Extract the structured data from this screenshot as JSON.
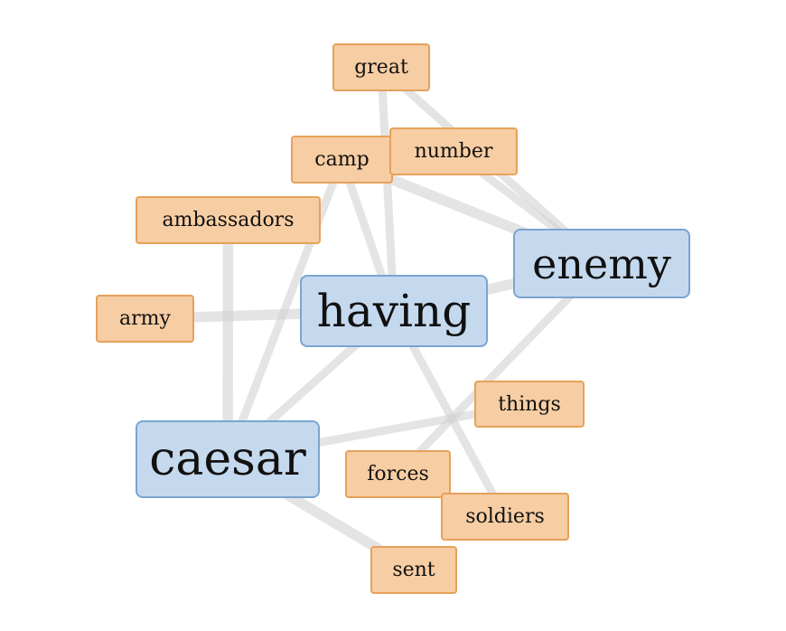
{
  "graph": {
    "colors": {
      "major_fill": "#c5d9ee",
      "major_border": "#7aa5cf",
      "minor_fill": "#f7cda3",
      "minor_border": "#e6a15b",
      "edge": "#d2d2d2"
    },
    "nodes": [
      {
        "id": "great",
        "label": "great",
        "kind": "minor"
      },
      {
        "id": "number",
        "label": "number",
        "kind": "minor"
      },
      {
        "id": "camp",
        "label": "camp",
        "kind": "minor"
      },
      {
        "id": "ambassadors",
        "label": "ambassadors",
        "kind": "minor"
      },
      {
        "id": "enemy",
        "label": "enemy",
        "kind": "major"
      },
      {
        "id": "army",
        "label": "army",
        "kind": "minor"
      },
      {
        "id": "having",
        "label": "having",
        "kind": "major"
      },
      {
        "id": "things",
        "label": "things",
        "kind": "minor"
      },
      {
        "id": "caesar",
        "label": "caesar",
        "kind": "major"
      },
      {
        "id": "forces",
        "label": "forces",
        "kind": "minor"
      },
      {
        "id": "soldiers",
        "label": "soldiers",
        "kind": "minor"
      },
      {
        "id": "sent",
        "label": "sent",
        "kind": "minor"
      }
    ],
    "edges": [
      {
        "from": "great",
        "to": "having",
        "weight": 2
      },
      {
        "from": "great",
        "to": "enemy",
        "weight": 2
      },
      {
        "from": "camp",
        "to": "having",
        "weight": 2
      },
      {
        "from": "camp",
        "to": "caesar",
        "weight": 2
      },
      {
        "from": "camp",
        "to": "enemy",
        "weight": 3
      },
      {
        "from": "number",
        "to": "enemy",
        "weight": 2
      },
      {
        "from": "ambassadors",
        "to": "caesar",
        "weight": 3
      },
      {
        "from": "army",
        "to": "having",
        "weight": 3
      },
      {
        "from": "having",
        "to": "enemy",
        "weight": 3
      },
      {
        "from": "having",
        "to": "caesar",
        "weight": 2
      },
      {
        "from": "having",
        "to": "soldiers",
        "weight": 2
      },
      {
        "from": "enemy",
        "to": "forces",
        "weight": 2
      },
      {
        "from": "caesar",
        "to": "things",
        "weight": 2
      },
      {
        "from": "caesar",
        "to": "sent",
        "weight": 3
      }
    ]
  }
}
